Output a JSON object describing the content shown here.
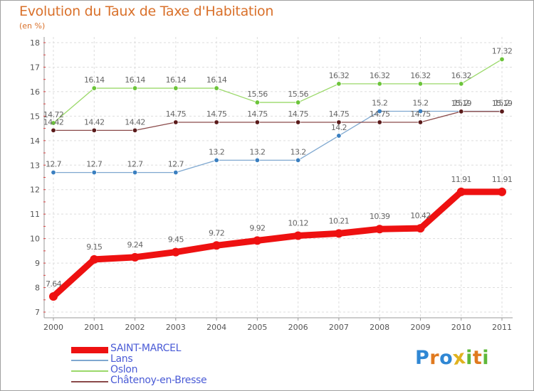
{
  "title": "Evolution du Taux de Taxe d'Habitation",
  "unit": "(en %)",
  "brand": {
    "letters": [
      "P",
      "r",
      "o",
      "x",
      "i",
      "t",
      "i"
    ],
    "colors": [
      "#2f87d4",
      "#e07a1f",
      "#2f87d4",
      "#e0b21f",
      "#5fb83a",
      "#e07a1f",
      "#5fb83a"
    ]
  },
  "chart_data": {
    "type": "line",
    "title": "Evolution du Taux de Taxe d'Habitation",
    "ylabel": "(en %)",
    "xlabel": "",
    "ylim": [
      7,
      18
    ],
    "yticks": [
      7,
      8,
      9,
      10,
      11,
      12,
      13,
      14,
      15,
      16,
      17,
      18
    ],
    "grid": true,
    "legend_position": "bottom-left",
    "categories": [
      "2000",
      "2001",
      "2002",
      "2003",
      "2004",
      "2005",
      "2006",
      "2007",
      "2008",
      "2009",
      "2010",
      "2011"
    ],
    "series": [
      {
        "name": "SAINT-MARCEL",
        "color": "#ee1111",
        "marker": "#ee1111",
        "width": 9,
        "dot": 6,
        "values": [
          7.64,
          9.15,
          9.24,
          9.45,
          9.72,
          9.92,
          10.12,
          10.21,
          10.39,
          10.42,
          11.91,
          11.91
        ],
        "labels": [
          "7.64",
          "9.15",
          "9.24",
          "9.45",
          "9.72",
          "9.92",
          "10.12",
          "10.21",
          "10.39",
          "10.42",
          "11.91",
          "11.91"
        ]
      },
      {
        "name": "Lans",
        "color": "#7fa8d0",
        "marker": "#3a7fc0",
        "width": 1.3,
        "dot": 3.3,
        "values": [
          12.7,
          12.7,
          12.7,
          12.7,
          13.2,
          13.2,
          13.2,
          14.2,
          15.2,
          15.2,
          15.2,
          15.2
        ],
        "labels": [
          "12.7",
          "12.7",
          "12.7",
          "12.7",
          "13.2",
          "13.2",
          "13.2",
          "14.2",
          "15.2",
          "15.2",
          "15.2",
          "15.2"
        ]
      },
      {
        "name": "Oslon",
        "color": "#9bd96a",
        "marker": "#6cc43a",
        "width": 1.3,
        "dot": 3.3,
        "values": [
          14.72,
          16.14,
          16.14,
          16.14,
          16.14,
          15.56,
          15.56,
          16.32,
          16.32,
          16.32,
          16.32,
          17.32
        ],
        "labels": [
          "14.72",
          "16.14",
          "16.14",
          "16.14",
          "16.14",
          "15.56",
          "15.56",
          "16.32",
          "16.32",
          "16.32",
          "16.32",
          "17.32"
        ]
      },
      {
        "name": "Châtenoy-en-Bresse",
        "color": "#8a4a4a",
        "marker": "#5a1a1a",
        "width": 1.3,
        "dot": 3.3,
        "values": [
          14.42,
          14.42,
          14.42,
          14.75,
          14.75,
          14.75,
          14.75,
          14.75,
          14.75,
          14.75,
          15.19,
          15.19
        ],
        "labels": [
          "14.42",
          "14.42",
          "14.42",
          "14.75",
          "14.75",
          "14.75",
          "14.75",
          "14.75",
          "14.75",
          "14.75",
          "15.19",
          "15.19"
        ]
      }
    ]
  }
}
